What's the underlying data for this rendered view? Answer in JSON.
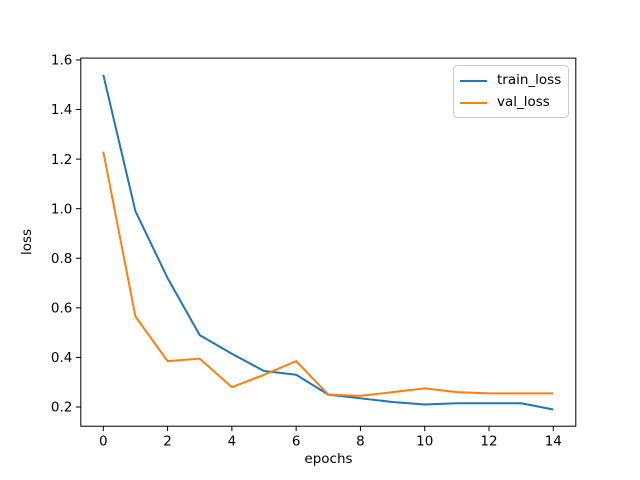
{
  "figure": {
    "background": "#ffffff",
    "spine_color": "#000000",
    "text_color": "#000000"
  },
  "chart_data": {
    "type": "line",
    "title": "",
    "xlabel": "epochs",
    "ylabel": "loss",
    "x": [
      0,
      1,
      2,
      3,
      4,
      5,
      6,
      7,
      8,
      9,
      10,
      11,
      12,
      13,
      14
    ],
    "series": [
      {
        "name": "train_loss",
        "color": "#1f77b4",
        "values": [
          1.54,
          0.99,
          0.72,
          0.49,
          0.415,
          0.345,
          0.33,
          0.25,
          0.235,
          0.22,
          0.21,
          0.215,
          0.215,
          0.215,
          0.19
        ]
      },
      {
        "name": "val_loss",
        "color": "#ff7f0e",
        "values": [
          1.23,
          0.565,
          0.385,
          0.395,
          0.28,
          0.33,
          0.385,
          0.25,
          0.245,
          0.26,
          0.275,
          0.26,
          0.255,
          0.255,
          0.255
        ]
      }
    ],
    "xticks": [
      0,
      2,
      4,
      6,
      8,
      10,
      12,
      14
    ],
    "yticks": [
      0.2,
      0.4,
      0.6,
      0.8,
      1.0,
      1.2,
      1.4,
      1.6
    ],
    "xlim": [
      -0.7,
      14.7
    ],
    "ylim": [
      0.1225,
      1.6075
    ],
    "grid": false,
    "legend": {
      "position": "upper right",
      "entries": [
        "train_loss",
        "val_loss"
      ]
    }
  }
}
